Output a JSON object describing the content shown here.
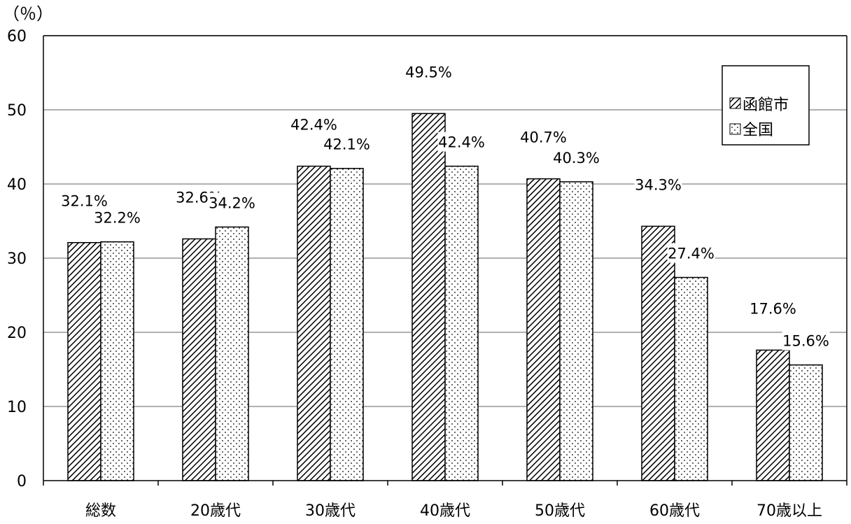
{
  "chart_data": {
    "type": "bar",
    "unit_label": "（％）",
    "categories": [
      "総数",
      "20歳代",
      "30歳代",
      "40歳代",
      "50歳代",
      "60歳代",
      "70歳以上"
    ],
    "series": [
      {
        "name": "函館市",
        "values": [
          32.1,
          32.6,
          42.4,
          49.5,
          40.7,
          34.3,
          17.6
        ],
        "labels": [
          "32.1%",
          "32.6%",
          "42.4%",
          "49.5%",
          "40.7%",
          "34.3%",
          "17.6%"
        ],
        "pattern": "diagonal-hatch"
      },
      {
        "name": "全国",
        "values": [
          32.2,
          34.2,
          42.1,
          42.4,
          40.3,
          27.4,
          15.6
        ],
        "labels": [
          "32.2%",
          "34.2%",
          "42.1%",
          "42.4%",
          "40.3%",
          "27.4%",
          "15.6%"
        ],
        "pattern": "dots"
      }
    ],
    "ylim": [
      0,
      60
    ],
    "yticks": [
      "0",
      "10",
      "20",
      "30",
      "40",
      "50",
      "60"
    ],
    "grid": true,
    "legend_position": "top-right",
    "colors": {
      "bar_stroke": "#000000",
      "grid": "#808080",
      "fill": "#ffffff"
    }
  }
}
